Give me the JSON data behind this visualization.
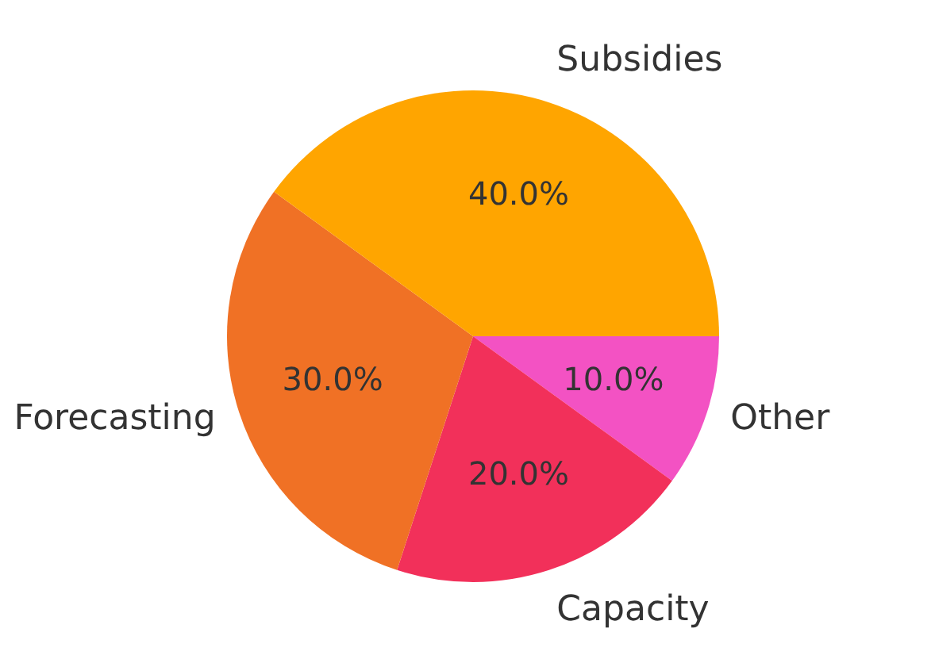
{
  "chart_data": {
    "type": "pie",
    "categories": [
      "Subsidies",
      "Forecasting",
      "Capacity",
      "Other"
    ],
    "values": [
      40,
      30,
      20,
      10
    ],
    "value_labels": [
      "40.0%",
      "30.0%",
      "20.0%",
      "10.0%"
    ],
    "colors": [
      "#ffa500",
      "#f07125",
      "#f2305a",
      "#f352c3"
    ],
    "legend": false
  }
}
